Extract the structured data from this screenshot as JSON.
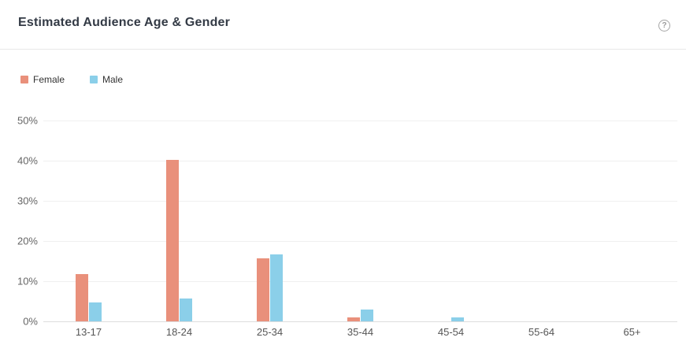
{
  "header": {
    "title": "Estimated Audience Age & Gender",
    "help_icon": "?"
  },
  "colors": {
    "female": "#e9907b",
    "male": "#8bcfe9",
    "gridline": "#f0f0f0",
    "baseline": "#dedede",
    "axis_text": "#666666",
    "title_text": "#333a45"
  },
  "chart_data": {
    "type": "bar",
    "title": "Estimated Audience Age & Gender",
    "categories": [
      "13-17",
      "18-24",
      "25-34",
      "35-44",
      "45-54",
      "55-64",
      "65+"
    ],
    "series": [
      {
        "name": "Female",
        "color": "#e9907b",
        "values": [
          11.8,
          40.3,
          15.7,
          1.0,
          0,
          0,
          0
        ]
      },
      {
        "name": "Male",
        "color": "#8bcfe9",
        "values": [
          4.8,
          5.7,
          16.7,
          2.9,
          0.9,
          0,
          0
        ]
      }
    ],
    "xlabel": "",
    "ylabel": "",
    "ylim": [
      0,
      50
    ],
    "y_ticks": [
      "0%",
      "10%",
      "20%",
      "30%",
      "40%",
      "50%"
    ],
    "grid": true,
    "legend_position": "top-left"
  }
}
